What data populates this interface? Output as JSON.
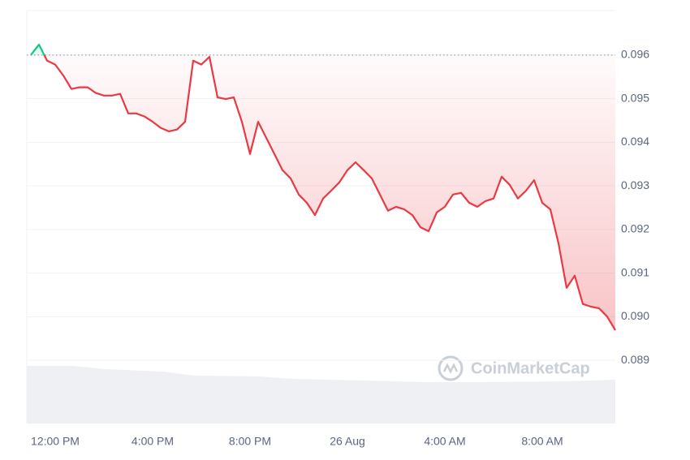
{
  "chart_data": {
    "type": "line",
    "watermark": "CoinMarketCap",
    "categories": [
      null,
      null,
      null,
      "12:00 PM",
      null,
      null,
      null,
      null,
      null,
      null,
      null,
      null,
      null,
      null,
      null,
      "4:00 PM",
      null,
      null,
      null,
      null,
      null,
      null,
      null,
      null,
      null,
      null,
      null,
      "8:00 PM",
      null,
      null,
      null,
      null,
      null,
      null,
      null,
      null,
      null,
      null,
      null,
      "26 Aug",
      null,
      null,
      null,
      null,
      null,
      null,
      null,
      null,
      null,
      null,
      null,
      "4:00 AM",
      null,
      null,
      null,
      null,
      null,
      null,
      null,
      null,
      null,
      null,
      null,
      "8:00 AM",
      null,
      null,
      null,
      null,
      null,
      null,
      null,
      null,
      null
    ],
    "values": [
      0.096,
      0.09624,
      0.09587,
      0.09578,
      0.09553,
      0.09522,
      0.09526,
      0.09526,
      0.09513,
      0.09507,
      0.09507,
      0.09511,
      0.09466,
      0.09466,
      0.09459,
      0.09447,
      0.09433,
      0.09425,
      0.09429,
      0.09447,
      0.09587,
      0.09578,
      0.09596,
      0.09503,
      0.09499,
      0.09503,
      0.09447,
      0.09373,
      0.09447,
      0.0941,
      0.09373,
      0.09336,
      0.09317,
      0.0928,
      0.09261,
      0.09233,
      0.09271,
      0.09289,
      0.09308,
      0.09336,
      0.09354,
      0.09336,
      0.09317,
      0.0928,
      0.09243,
      0.09252,
      0.09246,
      0.09233,
      0.09205,
      0.09196,
      0.09239,
      0.09252,
      0.0928,
      0.09284,
      0.09261,
      0.09252,
      0.09265,
      0.09271,
      0.09321,
      0.09302,
      0.09271,
      0.09289,
      0.09313,
      0.09261,
      0.09246,
      0.09168,
      0.09066,
      0.09094,
      0.09029,
      0.09023,
      0.09019,
      0.09,
      0.08969
    ],
    "baseline": 0.096,
    "up_color": "#16c784",
    "down_color": "#ea3943",
    "ylim": [
      0.08755,
      0.09702
    ],
    "yticks": [
      0.089,
      {
        "value": 0.09,
        "label": "0.090"
      },
      0.091,
      0.092,
      0.093,
      0.094,
      0.095,
      0.096
    ],
    "grid": true
  }
}
